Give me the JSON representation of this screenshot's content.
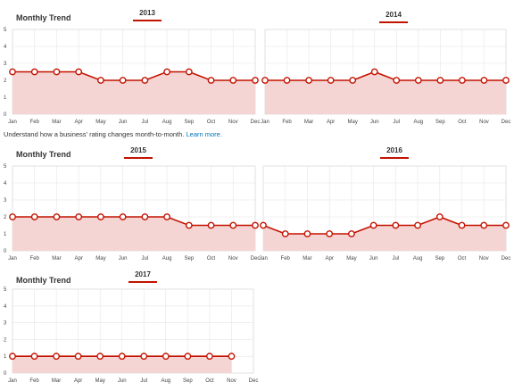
{
  "headings": [
    "Monthly Trend",
    "Monthly Trend",
    "Monthly Trend"
  ],
  "hint": {
    "text": "Understand how a business' rating changes month-to-month.",
    "link": "Learn more."
  },
  "colors": {
    "line": "#c41200",
    "fill": "#f5d5d3",
    "grid": "#e6e6e6",
    "year_underline": "#c41200"
  },
  "chart_data": [
    {
      "type": "area",
      "title": "2013",
      "x": [
        "Jan",
        "Feb",
        "Mar",
        "Apr",
        "May",
        "Jun",
        "Jul",
        "Aug",
        "Sep",
        "Oct",
        "Nov",
        "Dec"
      ],
      "values": [
        2.5,
        2.5,
        2.5,
        2.5,
        2,
        2,
        2,
        2.5,
        2.5,
        2,
        2,
        2
      ],
      "ylim": [
        0,
        5
      ],
      "yticks": [
        0,
        1,
        2,
        3,
        4,
        5
      ],
      "grid": true
    },
    {
      "type": "area",
      "title": "2014",
      "x": [
        "Jan",
        "Feb",
        "Mar",
        "Apr",
        "May",
        "Jun",
        "Jul",
        "Aug",
        "Sep",
        "Oct",
        "Nov",
        "Dec"
      ],
      "values": [
        2,
        2,
        2,
        2,
        2,
        2.5,
        2,
        2,
        2,
        2,
        2,
        2
      ],
      "ylim": [
        0,
        5
      ],
      "yticks": [],
      "grid": true
    },
    {
      "type": "area",
      "title": "2015",
      "x": [
        "Jan",
        "Feb",
        "Mar",
        "Apr",
        "May",
        "Jun",
        "Jul",
        "Aug",
        "Sep",
        "Oct",
        "Nov",
        "Dec"
      ],
      "values": [
        2,
        2,
        2,
        2,
        2,
        2,
        2,
        2,
        1.5,
        1.5,
        1.5,
        1.5
      ],
      "ylim": [
        0,
        5
      ],
      "yticks": [
        0,
        1,
        2,
        3,
        4,
        5
      ],
      "grid": true
    },
    {
      "type": "area",
      "title": "2016",
      "x": [
        "Jan",
        "Feb",
        "Mar",
        "Apr",
        "May",
        "Jun",
        "Jul",
        "Aug",
        "Sep",
        "Oct",
        "Nov",
        "Dec"
      ],
      "values": [
        1.5,
        1,
        1,
        1,
        1,
        1.5,
        1.5,
        1.5,
        2,
        1.5,
        1.5,
        1.5
      ],
      "ylim": [
        0,
        5
      ],
      "yticks": [],
      "grid": true
    },
    {
      "type": "area",
      "title": "2017",
      "x": [
        "Jan",
        "Feb",
        "Mar",
        "Apr",
        "May",
        "Jun",
        "Jul",
        "Aug",
        "Sep",
        "Oct",
        "Nov",
        "Dec"
      ],
      "values": [
        1,
        1,
        1,
        1,
        1,
        1,
        1,
        1,
        1,
        1,
        1,
        null
      ],
      "ylim": [
        0,
        5
      ],
      "yticks": [
        0,
        1,
        2,
        3,
        4,
        5
      ],
      "grid": true
    }
  ]
}
